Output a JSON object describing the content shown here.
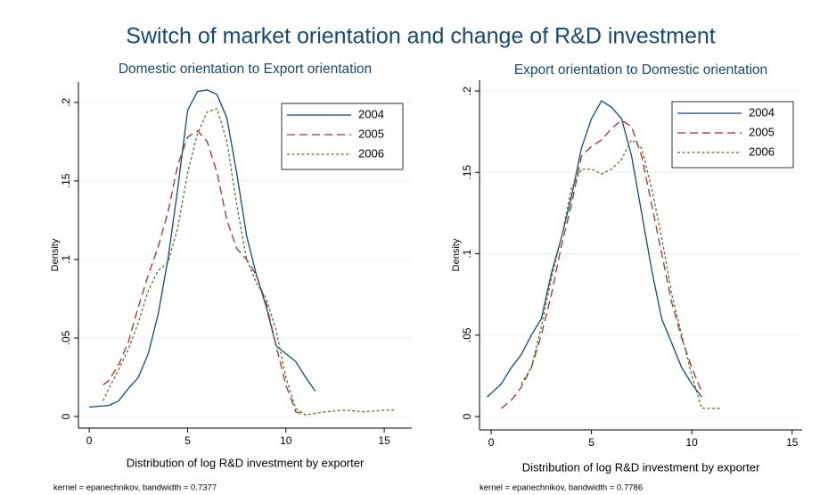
{
  "title": "Switch of market orientation and change of R&D investment",
  "chart_data": [
    {
      "type": "line",
      "title": "Domestic orientation to Export orientation",
      "xlabel": "Distribution of log R&D investment by exporter",
      "ylabel": "Density",
      "note": "kernel = epanechnikov, bandwidth = 0.7377",
      "xlim": [
        -0.55,
        16.4
      ],
      "ylim": [
        -0.0074,
        0.213
      ],
      "xticks": [
        0,
        5,
        10,
        15
      ],
      "yticks": [
        0,
        {
          "value": 0.05,
          "label": ".05"
        },
        {
          "value": 0.1,
          "label": ".1"
        },
        {
          "value": 0.15,
          "label": ".15"
        },
        {
          "value": 0.2,
          "label": ".2"
        }
      ],
      "grid": true,
      "legend": "top-right",
      "series": [
        {
          "name": "2004",
          "color": "#1a476f",
          "dash": "solid",
          "x": [
            0,
            1,
            1.5,
            2,
            2.5,
            3,
            3.5,
            4,
            4.5,
            5,
            5.5,
            6,
            6.5,
            7,
            7.5,
            8,
            8.5,
            9,
            9.5,
            10,
            10.5,
            11,
            11.5
          ],
          "values": [
            0.006,
            0.007,
            0.01,
            0.018,
            0.025,
            0.04,
            0.065,
            0.1,
            0.145,
            0.195,
            0.207,
            0.208,
            0.205,
            0.19,
            0.155,
            0.115,
            0.09,
            0.07,
            0.045,
            0.04,
            0.035,
            0.025,
            0.016
          ]
        },
        {
          "name": "2005",
          "color": "#90353b",
          "dash": "dashed",
          "x": [
            0.7,
            1,
            1.5,
            2,
            2.5,
            3,
            3.5,
            4,
            4.5,
            5,
            5.5,
            6,
            6.5,
            7,
            7.5,
            8,
            8.5,
            9,
            9.5,
            10,
            10.5,
            11
          ],
          "values": [
            0.02,
            0.023,
            0.033,
            0.048,
            0.07,
            0.09,
            0.108,
            0.13,
            0.16,
            0.178,
            0.182,
            0.175,
            0.155,
            0.125,
            0.107,
            0.1,
            0.09,
            0.072,
            0.045,
            0.02,
            0.003,
            0.001
          ]
        },
        {
          "name": "2006",
          "color": "#55752f",
          "dash": "dotted",
          "x": [
            0.7,
            1,
            1.5,
            2,
            2.5,
            3,
            3.5,
            4,
            4.5,
            5,
            5.5,
            6,
            6.5,
            7,
            7.5,
            8,
            8.5,
            9,
            9.5,
            10,
            10.5,
            11,
            12,
            13,
            14,
            15,
            15.5
          ],
          "values": [
            0.01,
            0.018,
            0.03,
            0.043,
            0.06,
            0.08,
            0.093,
            0.098,
            0.12,
            0.155,
            0.18,
            0.194,
            0.196,
            0.175,
            0.135,
            0.1,
            0.085,
            0.075,
            0.055,
            0.025,
            0.005,
            0.001,
            0.003,
            0.004,
            0.003,
            0.004,
            0.004
          ]
        }
      ]
    },
    {
      "type": "line",
      "title": "Export orientation to Domestic orientation",
      "xlabel": "Distribution of log R&D investment by exporter",
      "ylabel": "Density",
      "note": "kernel = epanechnikov, bandwidth = 0.7786",
      "xlim": [
        -0.58,
        15.5
      ],
      "ylim": [
        -0.0082,
        0.2066
      ],
      "xticks": [
        0,
        5,
        10,
        15
      ],
      "yticks": [
        0,
        {
          "value": 0.05,
          "label": ".05"
        },
        {
          "value": 0.1,
          "label": ".1"
        },
        {
          "value": 0.15,
          "label": ".15"
        },
        {
          "value": 0.2,
          "label": ".2"
        }
      ],
      "grid": true,
      "legend": "top-right",
      "series": [
        {
          "name": "2004",
          "color": "#1a476f",
          "dash": "solid",
          "x": [
            -0.2,
            0.5,
            1,
            1.5,
            2,
            2.5,
            3,
            3.5,
            4,
            4.5,
            5,
            5.5,
            6,
            6.5,
            7,
            7.5,
            8,
            8.5,
            9,
            9.5,
            10,
            10.5
          ],
          "values": [
            0.012,
            0.02,
            0.03,
            0.038,
            0.05,
            0.06,
            0.088,
            0.11,
            0.135,
            0.165,
            0.183,
            0.194,
            0.19,
            0.183,
            0.16,
            0.125,
            0.09,
            0.06,
            0.045,
            0.03,
            0.02,
            0.012
          ]
        },
        {
          "name": "2005",
          "color": "#90353b",
          "dash": "dashed",
          "x": [
            0.5,
            1,
            1.5,
            2,
            2.5,
            3,
            3.5,
            4,
            4.5,
            5,
            5.5,
            6,
            6.5,
            7,
            7.5,
            8,
            8.5,
            9,
            9.5,
            10,
            10.5
          ],
          "values": [
            0.005,
            0.01,
            0.018,
            0.03,
            0.05,
            0.075,
            0.105,
            0.13,
            0.16,
            0.166,
            0.17,
            0.177,
            0.182,
            0.178,
            0.16,
            0.13,
            0.1,
            0.07,
            0.048,
            0.03,
            0.015
          ]
        },
        {
          "name": "2006",
          "color": "#55752f",
          "dash": "dotted",
          "x": [
            1.5,
            2,
            2.5,
            3,
            3.5,
            4,
            4.5,
            5,
            5.5,
            6,
            6.5,
            7,
            7.5,
            8,
            8.5,
            9,
            9.5,
            10,
            10.5,
            11,
            11.5
          ],
          "values": [
            0.02,
            0.03,
            0.055,
            0.085,
            0.11,
            0.14,
            0.152,
            0.152,
            0.149,
            0.152,
            0.158,
            0.17,
            0.165,
            0.14,
            0.11,
            0.075,
            0.05,
            0.025,
            0.005,
            0.005,
            0.005
          ]
        }
      ]
    }
  ]
}
